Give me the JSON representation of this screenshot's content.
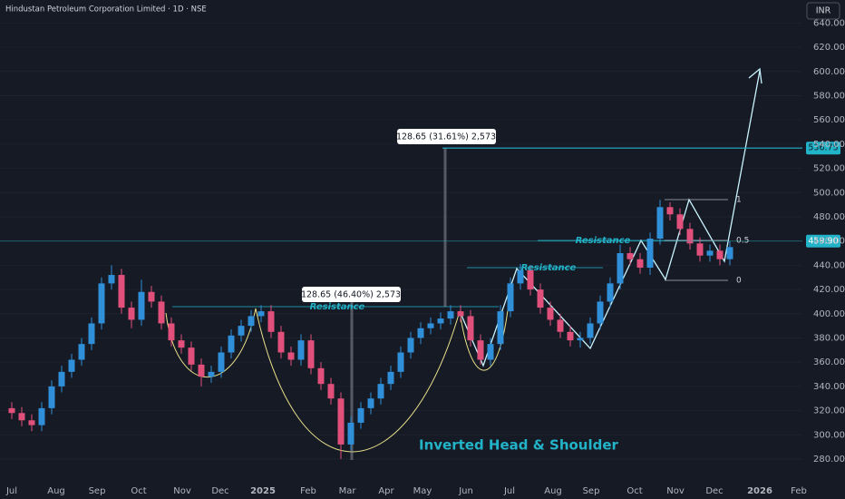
{
  "chart_data": {
    "type": "candlestick",
    "title": "Hindustan Petroleum Corporation Limited · 1D · NSE",
    "currency": "INR",
    "up_color": "#2f8fd8",
    "down_color": "#e0507a",
    "categories": [
      null,
      null,
      null,
      null,
      null,
      null,
      null,
      null,
      null,
      null,
      null,
      null,
      null,
      null,
      null,
      null,
      null,
      null,
      null,
      null,
      null,
      null,
      null,
      null,
      null,
      null,
      null,
      null,
      null,
      null,
      null,
      null,
      null,
      null,
      null,
      null,
      null,
      null,
      null,
      null,
      null,
      null,
      null,
      null,
      null,
      null,
      null,
      null,
      null,
      null,
      null,
      null,
      null,
      null,
      null,
      null,
      null,
      null,
      null,
      null,
      null,
      null,
      null,
      null,
      null,
      null,
      null,
      null,
      null,
      null,
      null,
      null,
      null
    ],
    "open": [
      322,
      318,
      312,
      308,
      322,
      340,
      352,
      362,
      375,
      392,
      425,
      432,
      405,
      395,
      418,
      410,
      392,
      378,
      372,
      358,
      348,
      352,
      368,
      382,
      390,
      398,
      402,
      385,
      368,
      362,
      378,
      355,
      342,
      330,
      292,
      310,
      322,
      330,
      342,
      352,
      368,
      380,
      388,
      392,
      396,
      402,
      398,
      378,
      362,
      375,
      402,
      425,
      436,
      420,
      405,
      395,
      385,
      378,
      380,
      392,
      410,
      425,
      450,
      445,
      438,
      462,
      488,
      482,
      470,
      458,
      448,
      452,
      445
    ],
    "high": [
      327,
      323,
      317,
      327,
      345,
      357,
      367,
      380,
      397,
      430,
      440,
      437,
      410,
      428,
      423,
      415,
      397,
      383,
      377,
      363,
      357,
      373,
      387,
      395,
      403,
      407,
      407,
      390,
      373,
      383,
      383,
      360,
      347,
      335,
      315,
      327,
      335,
      347,
      357,
      373,
      385,
      393,
      397,
      401,
      407,
      407,
      403,
      383,
      380,
      407,
      430,
      441,
      440,
      425,
      410,
      400,
      390,
      385,
      397,
      415,
      430,
      457,
      455,
      450,
      467,
      494,
      492,
      487,
      475,
      463,
      457,
      457,
      460
    ],
    "low": [
      313,
      307,
      303,
      303,
      317,
      335,
      347,
      357,
      370,
      387,
      420,
      400,
      388,
      390,
      405,
      387,
      373,
      367,
      353,
      340,
      343,
      347,
      363,
      377,
      385,
      393,
      380,
      363,
      357,
      357,
      350,
      337,
      325,
      280,
      287,
      305,
      317,
      325,
      337,
      347,
      363,
      375,
      383,
      387,
      391,
      393,
      373,
      358,
      357,
      370,
      397,
      420,
      415,
      400,
      390,
      380,
      373,
      372,
      375,
      387,
      405,
      420,
      440,
      433,
      432,
      457,
      477,
      465,
      453,
      443,
      443,
      440,
      440
    ],
    "close": [
      318,
      312,
      308,
      322,
      340,
      352,
      362,
      375,
      392,
      425,
      432,
      405,
      395,
      418,
      410,
      392,
      378,
      372,
      358,
      348,
      352,
      368,
      382,
      390,
      398,
      402,
      385,
      368,
      362,
      378,
      355,
      342,
      330,
      292,
      310,
      322,
      330,
      342,
      352,
      368,
      380,
      388,
      392,
      396,
      402,
      398,
      378,
      362,
      375,
      402,
      425,
      436,
      420,
      405,
      395,
      385,
      378,
      380,
      392,
      410,
      425,
      450,
      445,
      438,
      462,
      488,
      482,
      470,
      458,
      448,
      452,
      445,
      455
    ],
    "ylim": [
      262,
      659
    ],
    "yticks": [
      {
        "value": 280,
        "label": "280.00"
      },
      {
        "value": 300,
        "label": "300.00"
      },
      {
        "value": 320,
        "label": "320.00"
      },
      {
        "value": 340,
        "label": "340.00"
      },
      {
        "value": 360,
        "label": "360.00"
      },
      {
        "value": 380,
        "label": "380.00"
      },
      {
        "value": 400,
        "label": "400.00"
      },
      {
        "value": 420,
        "label": "420.00"
      },
      {
        "value": 440,
        "label": "440.00"
      },
      {
        "value": 460,
        "label": "460.00"
      },
      {
        "value": 480,
        "label": "480.00"
      },
      {
        "value": 500,
        "label": "500.00"
      },
      {
        "value": 520,
        "label": "520.00"
      },
      {
        "value": 540,
        "label": "540.00"
      },
      {
        "value": 560,
        "label": "560.00"
      },
      {
        "value": 580,
        "label": "580.00"
      },
      {
        "value": 600,
        "label": "600.00"
      },
      {
        "value": 620,
        "label": "620.00"
      },
      {
        "value": 640,
        "label": "640.00"
      }
    ],
    "month_labels": [
      "Jul",
      "Aug",
      "Sep",
      "Oct",
      "Nov",
      "Dec",
      "2025",
      "Feb",
      "Mar",
      "Apr",
      "May",
      "Jun",
      "Jul",
      "Aug",
      "Sep",
      "Oct",
      "Nov",
      "Dec",
      "2026",
      "Feb"
    ],
    "price_levels": [
      {
        "value": 536.75,
        "label": "536.75"
      },
      {
        "value": 459.9,
        "label": "459.90"
      }
    ],
    "annotations": {
      "resistance": [
        "Resistance",
        "Resistance",
        "Resistance"
      ],
      "measure_1": "128.65 (46.40%) 2,573",
      "measure_2": "128.65 (31.61%) 2,573",
      "pattern": "Inverted Head & Shoulder",
      "fib": [
        "1",
        "0.5",
        "0"
      ]
    }
  }
}
